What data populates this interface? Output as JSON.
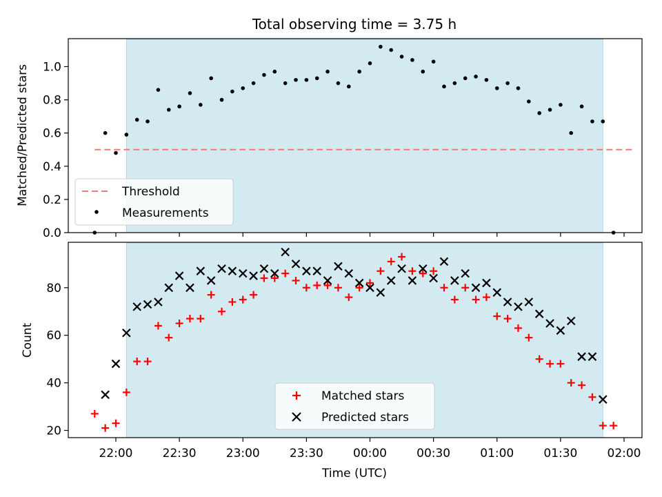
{
  "chart_data": [
    {
      "type": "scatter",
      "title": "Total observing time = 3.75 h",
      "xlabel": "",
      "ylabel": "Matched/Predicted stars",
      "ylim": [
        0,
        1.17
      ],
      "yticks": [
        "0.0",
        "0.2",
        "0.4",
        "0.6",
        "0.8",
        "1.0"
      ],
      "shaded_interval": [
        "22:05",
        "01:50"
      ],
      "shade_color": "#d3eaf0",
      "threshold": {
        "name": "Threshold",
        "value": 0.5,
        "x_range": [
          "21:50",
          "02:05"
        ],
        "color": "#f07b7b",
        "style": "dashed"
      },
      "legend": {
        "position": "lower-left",
        "entries": [
          "Threshold",
          "Measurements"
        ]
      },
      "series": [
        {
          "name": "Measurements",
          "color": "#000000",
          "marker": "dot",
          "points": [
            [
              "21:50",
              0.0
            ],
            [
              "21:55",
              0.6
            ],
            [
              "22:00",
              0.48
            ],
            [
              "22:05",
              0.59
            ],
            [
              "22:10",
              0.68
            ],
            [
              "22:15",
              0.67
            ],
            [
              "22:20",
              0.86
            ],
            [
              "22:25",
              0.74
            ],
            [
              "22:30",
              0.76
            ],
            [
              "22:35",
              0.84
            ],
            [
              "22:40",
              0.77
            ],
            [
              "22:45",
              0.93
            ],
            [
              "22:50",
              0.8
            ],
            [
              "22:55",
              0.85
            ],
            [
              "23:00",
              0.87
            ],
            [
              "23:05",
              0.9
            ],
            [
              "23:10",
              0.95
            ],
            [
              "23:15",
              0.97
            ],
            [
              "23:20",
              0.9
            ],
            [
              "23:25",
              0.92
            ],
            [
              "23:30",
              0.92
            ],
            [
              "23:35",
              0.93
            ],
            [
              "23:40",
              0.97
            ],
            [
              "23:45",
              0.9
            ],
            [
              "23:50",
              0.88
            ],
            [
              "23:55",
              0.97
            ],
            [
              "00:00",
              1.02
            ],
            [
              "00:05",
              1.12
            ],
            [
              "00:10",
              1.1
            ],
            [
              "00:15",
              1.06
            ],
            [
              "00:20",
              1.04
            ],
            [
              "00:25",
              0.97
            ],
            [
              "00:30",
              1.03
            ],
            [
              "00:35",
              0.88
            ],
            [
              "00:40",
              0.9
            ],
            [
              "00:45",
              0.93
            ],
            [
              "00:50",
              0.94
            ],
            [
              "00:55",
              0.92
            ],
            [
              "01:00",
              0.87
            ],
            [
              "01:05",
              0.9
            ],
            [
              "01:10",
              0.87
            ],
            [
              "01:15",
              0.79
            ],
            [
              "01:20",
              0.72
            ],
            [
              "01:25",
              0.74
            ],
            [
              "01:30",
              0.77
            ],
            [
              "01:35",
              0.6
            ],
            [
              "01:40",
              0.76
            ],
            [
              "01:45",
              0.67
            ],
            [
              "01:50",
              0.67
            ],
            [
              "01:55",
              0.0
            ]
          ]
        }
      ]
    },
    {
      "type": "scatter",
      "title": "",
      "xlabel": "Time (UTC)",
      "ylabel": "Count",
      "ylim": [
        17,
        97
      ],
      "yticks": [
        "20",
        "40",
        "60",
        "80"
      ],
      "xticks": [
        "22:00",
        "22:30",
        "23:00",
        "23:30",
        "00:00",
        "00:30",
        "01:00",
        "01:30",
        "02:00"
      ],
      "shaded_interval": [
        "22:05",
        "01:50"
      ],
      "legend": {
        "position": "bottom-center",
        "entries": [
          "Matched stars",
          "Predicted stars"
        ]
      },
      "series": [
        {
          "name": "Matched stars",
          "color": "#ff0000",
          "marker": "plus",
          "points": [
            [
              "21:50",
              27
            ],
            [
              "21:55",
              21
            ],
            [
              "22:00",
              23
            ],
            [
              "22:05",
              36
            ],
            [
              "22:10",
              49
            ],
            [
              "22:15",
              49
            ],
            [
              "22:20",
              64
            ],
            [
              "22:25",
              59
            ],
            [
              "22:30",
              65
            ],
            [
              "22:35",
              67
            ],
            [
              "22:40",
              67
            ],
            [
              "22:45",
              77
            ],
            [
              "22:50",
              70
            ],
            [
              "22:55",
              74
            ],
            [
              "23:00",
              75
            ],
            [
              "23:05",
              77
            ],
            [
              "23:10",
              84
            ],
            [
              "23:15",
              84
            ],
            [
              "23:20",
              86
            ],
            [
              "23:25",
              83
            ],
            [
              "23:30",
              80
            ],
            [
              "23:35",
              81
            ],
            [
              "23:40",
              81
            ],
            [
              "23:45",
              80
            ],
            [
              "23:50",
              76
            ],
            [
              "23:55",
              80
            ],
            [
              "00:00",
              82
            ],
            [
              "00:05",
              87
            ],
            [
              "00:10",
              91
            ],
            [
              "00:15",
              93
            ],
            [
              "00:20",
              87
            ],
            [
              "00:25",
              86
            ],
            [
              "00:30",
              87
            ],
            [
              "00:35",
              80
            ],
            [
              "00:40",
              75
            ],
            [
              "00:45",
              80
            ],
            [
              "00:50",
              75
            ],
            [
              "00:55",
              76
            ],
            [
              "01:00",
              68
            ],
            [
              "01:05",
              67
            ],
            [
              "01:10",
              63
            ],
            [
              "01:15",
              59
            ],
            [
              "01:20",
              50
            ],
            [
              "01:25",
              48
            ],
            [
              "01:30",
              48
            ],
            [
              "01:35",
              40
            ],
            [
              "01:40",
              39
            ],
            [
              "01:45",
              34
            ],
            [
              "01:50",
              22
            ],
            [
              "01:55",
              22
            ]
          ]
        },
        {
          "name": "Predicted stars",
          "color": "#000000",
          "marker": "x",
          "points": [
            [
              "21:55",
              35
            ],
            [
              "22:00",
              48
            ],
            [
              "22:05",
              61
            ],
            [
              "22:10",
              72
            ],
            [
              "22:15",
              73
            ],
            [
              "22:20",
              74
            ],
            [
              "22:25",
              80
            ],
            [
              "22:30",
              85
            ],
            [
              "22:35",
              80
            ],
            [
              "22:40",
              87
            ],
            [
              "22:45",
              83
            ],
            [
              "22:50",
              88
            ],
            [
              "22:55",
              87
            ],
            [
              "23:00",
              86
            ],
            [
              "23:05",
              85
            ],
            [
              "23:10",
              88
            ],
            [
              "23:15",
              86
            ],
            [
              "23:20",
              95
            ],
            [
              "23:25",
              90
            ],
            [
              "23:30",
              87
            ],
            [
              "23:35",
              87
            ],
            [
              "23:40",
              83
            ],
            [
              "23:45",
              89
            ],
            [
              "23:50",
              86
            ],
            [
              "23:55",
              82
            ],
            [
              "00:00",
              80
            ],
            [
              "00:05",
              78
            ],
            [
              "00:10",
              83
            ],
            [
              "00:15",
              88
            ],
            [
              "00:20",
              83
            ],
            [
              "00:25",
              88
            ],
            [
              "00:30",
              84
            ],
            [
              "00:35",
              91
            ],
            [
              "00:40",
              83
            ],
            [
              "00:45",
              86
            ],
            [
              "00:50",
              80
            ],
            [
              "00:55",
              82
            ],
            [
              "01:00",
              78
            ],
            [
              "01:05",
              74
            ],
            [
              "01:10",
              72
            ],
            [
              "01:15",
              74
            ],
            [
              "01:20",
              69
            ],
            [
              "01:25",
              65
            ],
            [
              "01:30",
              62
            ],
            [
              "01:35",
              66
            ],
            [
              "01:40",
              51
            ],
            [
              "01:45",
              51
            ],
            [
              "01:50",
              33
            ]
          ]
        }
      ]
    }
  ]
}
